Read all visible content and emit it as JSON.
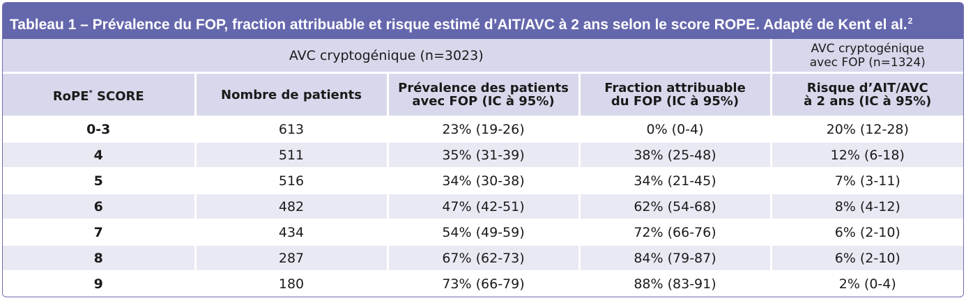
{
  "title": "Tableau 1 – Prévalence du FOP, fraction attribuable et risque estimé d’AIT/AVC à 2 ans selon le score ROPE. Adapté de Kent el al.",
  "title_ref": "2",
  "group_headers": {
    "left": "AVC cryptogénique (n=3023)",
    "right_line1": "AVC cryptogénique",
    "right_line2": "avec FOP (n=1324)"
  },
  "columns": {
    "score": "RoPE",
    "score_mark": "*",
    "score_suffix": " SCORE",
    "patients": "Nombre de patients",
    "prevalence_line1": "Prévalence des patients",
    "prevalence_line2": "avec FOP (IC à 95%)",
    "fraction_line1": "Fraction attribuable",
    "fraction_line2": "du FOP (IC à 95%)",
    "risk_line1": "Risque d’AIT/AVC",
    "risk_line2": "à 2 ans (IC à 95%)"
  },
  "rows": [
    {
      "score": "0-3",
      "patients": "613",
      "prevalence": "23% (19-26)",
      "fraction": "0% (0-4)",
      "risk": "20% (12-28)"
    },
    {
      "score": "4",
      "patients": "511",
      "prevalence": "35% (31-39)",
      "fraction": "38% (25-48)",
      "risk": "12% (6-18)"
    },
    {
      "score": "5",
      "patients": "516",
      "prevalence": "34% (30-38)",
      "fraction": "34% (21-45)",
      "risk": "7% (3-11)"
    },
    {
      "score": "6",
      "patients": "482",
      "prevalence": "47% (42-51)",
      "fraction": "62% (54-68)",
      "risk": "8% (4-12)"
    },
    {
      "score": "7",
      "patients": "434",
      "prevalence": "54% (49-59)",
      "fraction": "72% (66-76)",
      "risk": "6% (2-10)"
    },
    {
      "score": "8",
      "patients": "287",
      "prevalence": "67% (62-73)",
      "fraction": "84% (79-87)",
      "risk": "6% (2-10)"
    },
    {
      "score": "9",
      "patients": "180",
      "prevalence": "73% (66-79)",
      "fraction": "88% (83-91)",
      "risk": "2% (0-4)"
    }
  ],
  "colors": {
    "title_bar": "#6567ad",
    "header_bg": "#d8d8ec",
    "stripe_bg": "#e9e9f4"
  }
}
